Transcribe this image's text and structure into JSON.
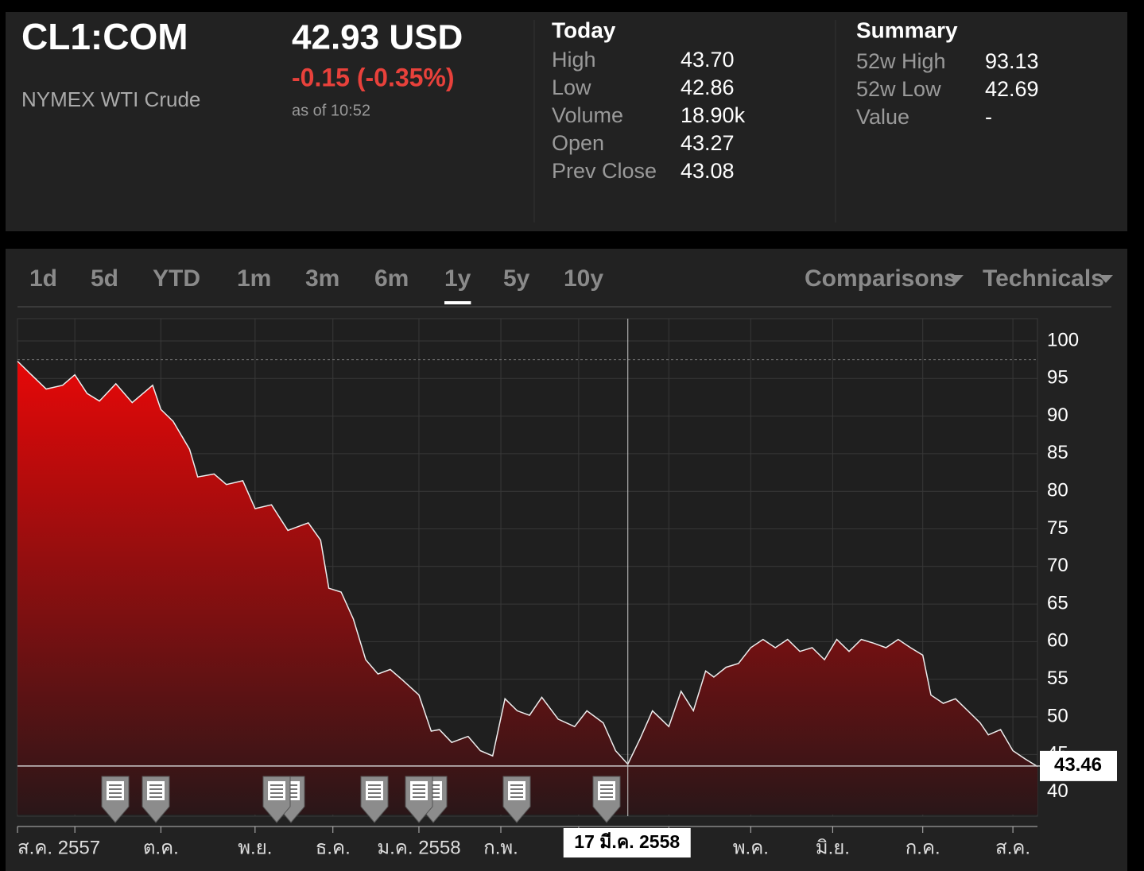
{
  "header": {
    "symbol": "CL1:COM",
    "name": "NYMEX WTI Crude",
    "price": "42.93 USD",
    "change": "-0.15 (-0.35%)",
    "as_of": "as of 10:52"
  },
  "today": {
    "title": "Today",
    "rows": [
      {
        "label": "High",
        "value": "43.70"
      },
      {
        "label": "Low",
        "value": "42.86"
      },
      {
        "label": "Volume",
        "value": "18.90k"
      },
      {
        "label": "Open",
        "value": "43.27"
      },
      {
        "label": "Prev Close",
        "value": "43.08"
      }
    ]
  },
  "summary": {
    "title": "Summary",
    "rows": [
      {
        "label": "52w High",
        "value": "93.13"
      },
      {
        "label": "52w Low",
        "value": "42.69"
      },
      {
        "label": "Value",
        "value": "-"
      }
    ]
  },
  "tabs": [
    {
      "label": "1d"
    },
    {
      "label": "5d"
    },
    {
      "label": "YTD"
    },
    {
      "label": "1m"
    },
    {
      "label": "3m"
    },
    {
      "label": "6m"
    },
    {
      "label": "1y",
      "active": true
    },
    {
      "label": "5y"
    },
    {
      "label": "10y"
    }
  ],
  "menus": [
    "Comparisons",
    "Technicals"
  ],
  "chart_data": {
    "type": "area",
    "color": "#e00000",
    "grid": true,
    "x": [
      0,
      3,
      7,
      11,
      14,
      17,
      20,
      24,
      28,
      33,
      35,
      38,
      42,
      44,
      48,
      51,
      55,
      58,
      62,
      66,
      69,
      71,
      74,
      76,
      79,
      82,
      85,
      88,
      91,
      94,
      98,
      101,
      103,
      106,
      110,
      113,
      116,
      119,
      122,
      125,
      128,
      132,
      136,
      139,
      143,
      146,
      149,
      152,
      155,
      159,
      162,
      165,
      168,
      170,
      173,
      176,
      179,
      182,
      185,
      188,
      191,
      194,
      197,
      200,
      203,
      206,
      209,
      212,
      215,
      218,
      221,
      223,
      226,
      229,
      232,
      235,
      237,
      240,
      243,
      246,
      249
    ],
    "values": [
      97.3,
      95.7,
      93.6,
      94.1,
      95.5,
      93.0,
      92.0,
      94.3,
      91.8,
      94.1,
      90.9,
      89.3,
      85.6,
      81.9,
      82.3,
      80.9,
      81.4,
      77.7,
      78.2,
      74.8,
      75.4,
      75.8,
      73.5,
      67.1,
      66.6,
      63.0,
      57.6,
      55.7,
      56.3,
      54.9,
      52.9,
      48.1,
      48.3,
      46.6,
      47.4,
      45.5,
      44.8,
      52.4,
      50.8,
      50.2,
      52.6,
      49.7,
      48.7,
      50.8,
      49.2,
      45.5,
      43.7,
      47.1,
      50.8,
      48.7,
      53.4,
      50.8,
      56.1,
      55.3,
      56.6,
      57.1,
      59.2,
      60.3,
      59.2,
      60.3,
      58.7,
      59.2,
      57.6,
      60.3,
      58.7,
      60.3,
      59.8,
      59.2,
      60.3,
      59.2,
      58.2,
      52.9,
      51.8,
      52.4,
      50.8,
      49.2,
      47.6,
      48.3,
      45.5,
      44.4,
      43.4
    ],
    "xlim": [
      0,
      249
    ],
    "ylim": [
      37,
      103
    ],
    "yticks": [
      40,
      45,
      50,
      55,
      60,
      65,
      70,
      75,
      80,
      85,
      90,
      95,
      100
    ],
    "xticks": [
      {
        "value": 0,
        "label": "ส.ค. 2557"
      },
      {
        "value": 35,
        "label": "ต.ค."
      },
      {
        "value": 58,
        "label": "พ.ย."
      },
      {
        "value": 77,
        "label": "ธ.ค."
      },
      {
        "value": 98,
        "label": "ม.ค. 2558"
      },
      {
        "value": 118,
        "label": "ก.พ."
      },
      {
        "value": 179,
        "label": "พ.ค."
      },
      {
        "value": 199,
        "label": "มิ.ย."
      },
      {
        "value": 221,
        "label": "ก.ค."
      },
      {
        "value": 243,
        "label": "ส.ค."
      }
    ],
    "xgrid": [
      14,
      137,
      159
    ],
    "ref_line": 97.5,
    "current_value": 43.46,
    "crosshair": {
      "x": 149,
      "label": "17 มี.ค. 2558"
    }
  }
}
